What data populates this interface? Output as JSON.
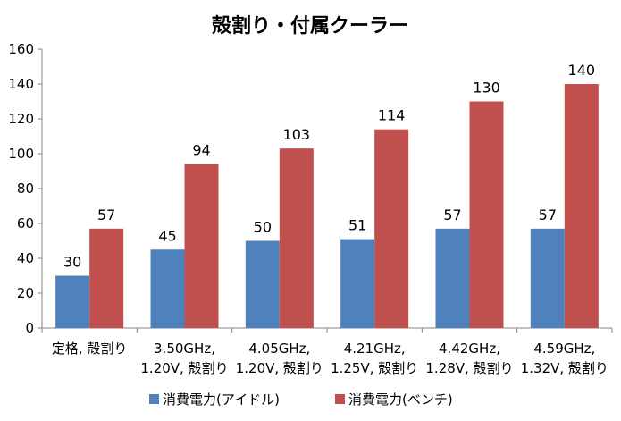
{
  "chart_data": {
    "type": "bar",
    "title": "殻割り・付属クーラー",
    "categories": [
      [
        "定格, 殻割り"
      ],
      [
        "3.50GHz,",
        "1.20V, 殻割り"
      ],
      [
        "4.05GHz,",
        "1.20V, 殻割り"
      ],
      [
        "4.21GHz,",
        "1.25V, 殻割り"
      ],
      [
        "4.42GHz,",
        "1.28V, 殻割り"
      ],
      [
        "4.59GHz,",
        "1.32V, 殻割り"
      ]
    ],
    "series": [
      {
        "name": "消費電力(アイドル)",
        "values": [
          30,
          45,
          50,
          51,
          57,
          57
        ],
        "color": "#4f81bd"
      },
      {
        "name": "消費電力(ベンチ)",
        "values": [
          57,
          94,
          103,
          114,
          130,
          140
        ],
        "color": "#c0504d"
      }
    ],
    "ylim": [
      0,
      160
    ],
    "yticks": [
      0,
      20,
      40,
      60,
      80,
      100,
      120,
      140,
      160
    ],
    "grid": false,
    "legend_position": "bottom"
  }
}
